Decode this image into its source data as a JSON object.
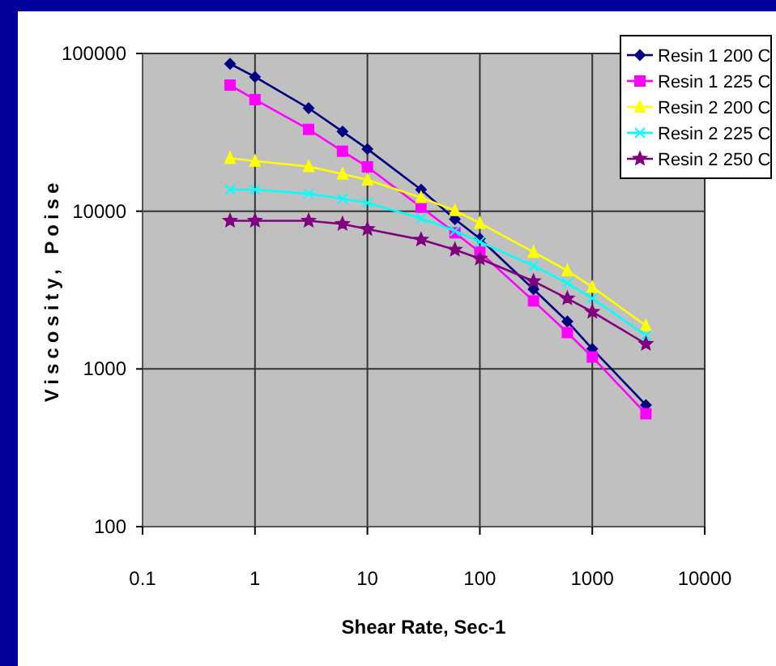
{
  "chart_data": {
    "type": "line",
    "xlabel": "Shear Rate, Sec-1",
    "ylabel": "Viscosity, Poise",
    "log": "xy",
    "grid": true,
    "legend": "top right",
    "x": [
      0.6,
      1,
      3,
      6,
      10,
      30,
      60,
      100,
      300,
      600,
      1000,
      3000
    ],
    "xlim": [
      0.1,
      10000
    ],
    "xticks": [
      0.1,
      1,
      10,
      100,
      1000,
      10000
    ],
    "ylim": [
      100,
      100000
    ],
    "yticks": [
      100,
      1000,
      10000,
      100000
    ],
    "series": [
      {
        "name": "Resin 1 200 C",
        "color": "#000080",
        "marker": "diamond",
        "values": [
          86000,
          71000,
          45000,
          32000,
          24800,
          13700,
          8900,
          6700,
          3200,
          2000,
          1340,
          590
        ]
      },
      {
        "name": "Resin 1 225 C",
        "color": "#ff00ff",
        "marker": "square",
        "values": [
          63000,
          51000,
          33000,
          24000,
          19100,
          10600,
          7300,
          5500,
          2700,
          1700,
          1190,
          520
        ]
      },
      {
        "name": "Resin 2 200 C",
        "color": "#ffff00",
        "marker": "triangle",
        "values": [
          21700,
          20800,
          19200,
          17200,
          15800,
          12200,
          10100,
          8400,
          5500,
          4200,
          3300,
          1880
        ]
      },
      {
        "name": "Resin 2 225 C",
        "color": "#00ffff",
        "marker": "cross",
        "values": [
          13700,
          13700,
          12900,
          12000,
          11300,
          9000,
          7500,
          6400,
          4500,
          3500,
          2800,
          1630
        ]
      },
      {
        "name": "Resin 2 250 C",
        "color": "#800080",
        "marker": "star",
        "values": [
          8700,
          8700,
          8700,
          8300,
          7700,
          6600,
          5700,
          5000,
          3600,
          2800,
          2300,
          1440
        ]
      }
    ]
  }
}
